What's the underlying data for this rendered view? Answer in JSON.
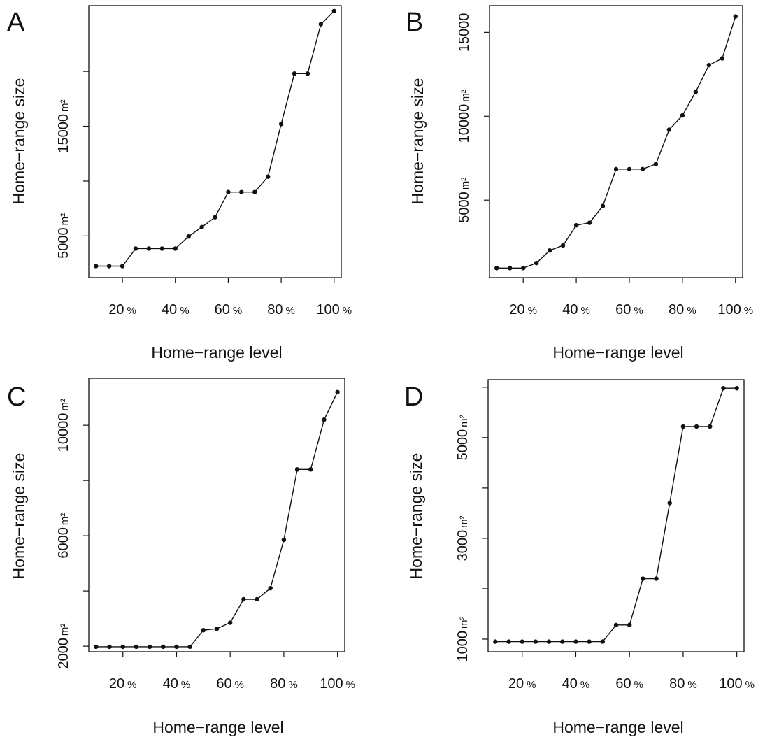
{
  "chart_data": [
    {
      "panel": "A",
      "type": "line",
      "xlabel": "Home−range level",
      "ylabel": "Home−range size",
      "xticks": [
        {
          "value": 20,
          "num": "20",
          "unit": "%"
        },
        {
          "value": 40,
          "num": "40",
          "unit": "%"
        },
        {
          "value": 60,
          "num": "60",
          "unit": "%"
        },
        {
          "value": 80,
          "num": "80",
          "unit": "%"
        },
        {
          "value": 100,
          "num": "100",
          "unit": "%"
        }
      ],
      "yticks": [
        {
          "value": 5000,
          "num": "5000",
          "unit": "m²"
        },
        {
          "value": 10000,
          "num": "",
          "unit": ""
        },
        {
          "value": 15000,
          "num": "15000",
          "unit": "m²"
        },
        {
          "value": 20000,
          "num": "",
          "unit": ""
        }
      ],
      "xlim": [
        7.3,
        102.7
      ],
      "ylim": [
        1200,
        26000
      ],
      "grid": false,
      "series": [
        {
          "x": [
            10,
            15,
            20,
            25,
            30,
            35,
            40,
            45,
            50,
            55,
            60,
            65,
            70,
            75,
            80,
            85,
            90,
            95,
            100
          ],
          "y": [
            2250,
            2250,
            2250,
            3850,
            3850,
            3850,
            3850,
            4950,
            5800,
            6700,
            9000,
            9000,
            9000,
            10400,
            15200,
            19800,
            19800,
            24300,
            25500
          ]
        }
      ]
    },
    {
      "panel": "B",
      "type": "line",
      "xlabel": "Home−range level",
      "ylabel": "Home−range size",
      "xticks": [
        {
          "value": 20,
          "num": "20",
          "unit": "%"
        },
        {
          "value": 40,
          "num": "40",
          "unit": "%"
        },
        {
          "value": 60,
          "num": "60",
          "unit": "%"
        },
        {
          "value": 80,
          "num": "80",
          "unit": "%"
        },
        {
          "value": 100,
          "num": "100",
          "unit": "%"
        }
      ],
      "yticks": [
        {
          "value": 5000,
          "num": "5000",
          "unit": "m²"
        },
        {
          "value": 10000,
          "num": "10000",
          "unit": "m²"
        },
        {
          "value": 15000,
          "num": "15000",
          "unit": ""
        }
      ],
      "xlim": [
        7.3,
        102.7
      ],
      "ylim": [
        380,
        16600
      ],
      "grid": false,
      "series": [
        {
          "x": [
            10,
            15,
            20,
            25,
            30,
            35,
            40,
            45,
            50,
            55,
            60,
            65,
            70,
            75,
            80,
            85,
            90,
            95,
            100
          ],
          "y": [
            950,
            950,
            950,
            1250,
            2000,
            2300,
            3500,
            3650,
            4650,
            6850,
            6850,
            6850,
            7150,
            9200,
            10050,
            11450,
            13050,
            13450,
            15950
          ]
        }
      ]
    },
    {
      "panel": "C",
      "type": "line",
      "xlabel": "Home−range level",
      "ylabel": "Home−range size",
      "xticks": [
        {
          "value": 20,
          "num": "20",
          "unit": "%"
        },
        {
          "value": 40,
          "num": "40",
          "unit": "%"
        },
        {
          "value": 60,
          "num": "60",
          "unit": "%"
        },
        {
          "value": 80,
          "num": "80",
          "unit": "%"
        },
        {
          "value": 100,
          "num": "100",
          "unit": "%"
        }
      ],
      "yticks": [
        {
          "value": 2000,
          "num": "2000",
          "unit": "m²"
        },
        {
          "value": 4000,
          "num": "",
          "unit": ""
        },
        {
          "value": 6000,
          "num": "6000",
          "unit": "m²"
        },
        {
          "value": 8000,
          "num": "",
          "unit": ""
        },
        {
          "value": 10000,
          "num": "10000",
          "unit": "m²"
        }
      ],
      "xlim": [
        7.3,
        102.7
      ],
      "ylim": [
        1800,
        11700
      ],
      "grid": false,
      "series": [
        {
          "x": [
            10,
            15,
            20,
            25,
            30,
            35,
            40,
            45,
            50,
            55,
            60,
            65,
            70,
            75,
            80,
            85,
            90,
            95,
            100
          ],
          "y": [
            1980,
            1980,
            1980,
            1980,
            1980,
            1980,
            1980,
            1980,
            2580,
            2630,
            2850,
            3700,
            3700,
            4100,
            5850,
            8400,
            8400,
            10200,
            11200
          ]
        }
      ]
    },
    {
      "panel": "D",
      "type": "line",
      "xlabel": "Home−range level",
      "ylabel": "Home−range size",
      "xticks": [
        {
          "value": 20,
          "num": "20",
          "unit": "%"
        },
        {
          "value": 40,
          "num": "40",
          "unit": "%"
        },
        {
          "value": 60,
          "num": "60",
          "unit": "%"
        },
        {
          "value": 80,
          "num": "80",
          "unit": "%"
        },
        {
          "value": 100,
          "num": "100",
          "unit": "%"
        }
      ],
      "yticks": [
        {
          "value": 1000,
          "num": "1000",
          "unit": "m²"
        },
        {
          "value": 2000,
          "num": "",
          "unit": ""
        },
        {
          "value": 3000,
          "num": "3000",
          "unit": "m²"
        },
        {
          "value": 4000,
          "num": "",
          "unit": ""
        },
        {
          "value": 5000,
          "num": "5000",
          "unit": "m²"
        },
        {
          "value": 6000,
          "num": "",
          "unit": ""
        }
      ],
      "xlim": [
        7.3,
        102.7
      ],
      "ylim": [
        750,
        6150
      ],
      "grid": false,
      "series": [
        {
          "x": [
            10,
            15,
            20,
            25,
            30,
            35,
            40,
            45,
            50,
            55,
            60,
            65,
            70,
            75,
            80,
            85,
            90,
            95,
            100
          ],
          "y": [
            950,
            950,
            950,
            950,
            950,
            950,
            950,
            950,
            950,
            1280,
            1280,
            2200,
            2200,
            3700,
            5220,
            5220,
            5220,
            5980,
            5980
          ]
        }
      ]
    }
  ]
}
